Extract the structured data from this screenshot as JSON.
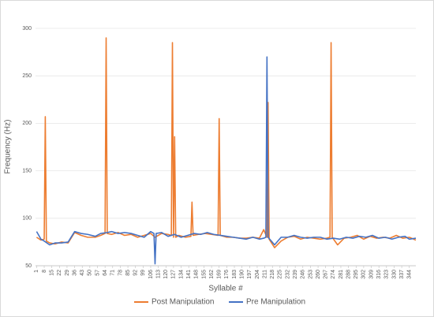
{
  "chart_data": {
    "type": "line",
    "x_label": "Syllable #",
    "y_label": "Frequency (Hz)",
    "xlim": [
      0,
      350
    ],
    "ylim": [
      50,
      300
    ],
    "xticks": [
      1,
      8,
      15,
      22,
      29,
      36,
      43,
      50,
      57,
      64,
      71,
      78,
      85,
      92,
      99,
      106,
      113,
      120,
      127,
      134,
      141,
      148,
      155,
      162,
      169,
      176,
      183,
      190,
      197,
      204,
      211,
      218,
      225,
      232,
      239,
      246,
      253,
      260,
      267,
      274,
      281,
      288,
      295,
      302,
      309,
      316,
      323,
      330,
      337,
      344
    ],
    "yticks": [
      50,
      100,
      150,
      200,
      250,
      300
    ],
    "grid": true,
    "legend": "bottom",
    "series": [
      {
        "name": "Post Manipulation",
        "color": "#ed7d31",
        "x": [
          1,
          5,
          8,
          9,
          10,
          13,
          18,
          24,
          30,
          36,
          42,
          48,
          55,
          60,
          64,
          65,
          66,
          70,
          76,
          82,
          88,
          94,
          100,
          106,
          110,
          116,
          122,
          125,
          126,
          127,
          128,
          129,
          132,
          138,
          143,
          144,
          145,
          150,
          156,
          162,
          168,
          169,
          170,
          176,
          182,
          188,
          194,
          200,
          206,
          210,
          213,
          214,
          215,
          220,
          226,
          232,
          238,
          244,
          250,
          256,
          262,
          268,
          271,
          272,
          273,
          278,
          284,
          290,
          296,
          302,
          308,
          314,
          320,
          326,
          332,
          338,
          344,
          350
        ],
        "values": [
          80,
          77,
          78,
          207,
          76,
          74,
          73,
          75,
          74,
          85,
          82,
          80,
          80,
          82,
          84,
          290,
          84,
          83,
          85,
          82,
          83,
          80,
          82,
          84,
          80,
          84,
          83,
          82,
          285,
          80,
          186,
          80,
          82,
          80,
          81,
          117,
          82,
          83,
          84,
          83,
          82,
          205,
          82,
          80,
          80,
          79,
          79,
          80,
          79,
          88,
          80,
          222,
          78,
          69,
          76,
          80,
          81,
          78,
          80,
          79,
          78,
          79,
          80,
          285,
          80,
          72,
          79,
          80,
          82,
          78,
          81,
          79,
          80,
          79,
          82,
          79,
          80,
          77
        ]
      },
      {
        "name": "Pre Manipulation",
        "color": "#4472c4",
        "x": [
          1,
          5,
          8,
          13,
          18,
          24,
          30,
          36,
          42,
          48,
          55,
          60,
          66,
          70,
          76,
          82,
          88,
          94,
          100,
          106,
          109,
          110,
          111,
          116,
          122,
          128,
          134,
          140,
          146,
          152,
          158,
          164,
          170,
          176,
          182,
          188,
          194,
          200,
          206,
          210,
          212,
          213,
          214,
          220,
          226,
          232,
          238,
          244,
          250,
          256,
          262,
          268,
          274,
          280,
          286,
          292,
          298,
          304,
          310,
          316,
          322,
          328,
          334,
          340,
          344,
          350
        ],
        "values": [
          86,
          78,
          76,
          72,
          74,
          74,
          75,
          86,
          84,
          83,
          81,
          84,
          85,
          86,
          84,
          85,
          84,
          82,
          80,
          86,
          84,
          52,
          84,
          85,
          81,
          83,
          80,
          82,
          84,
          83,
          85,
          83,
          82,
          81,
          80,
          79,
          78,
          80,
          78,
          79,
          80,
          270,
          80,
          72,
          80,
          80,
          82,
          80,
          79,
          80,
          80,
          78,
          79,
          78,
          80,
          79,
          81,
          80,
          82,
          79,
          80,
          78,
          80,
          81,
          78,
          79
        ]
      }
    ]
  }
}
